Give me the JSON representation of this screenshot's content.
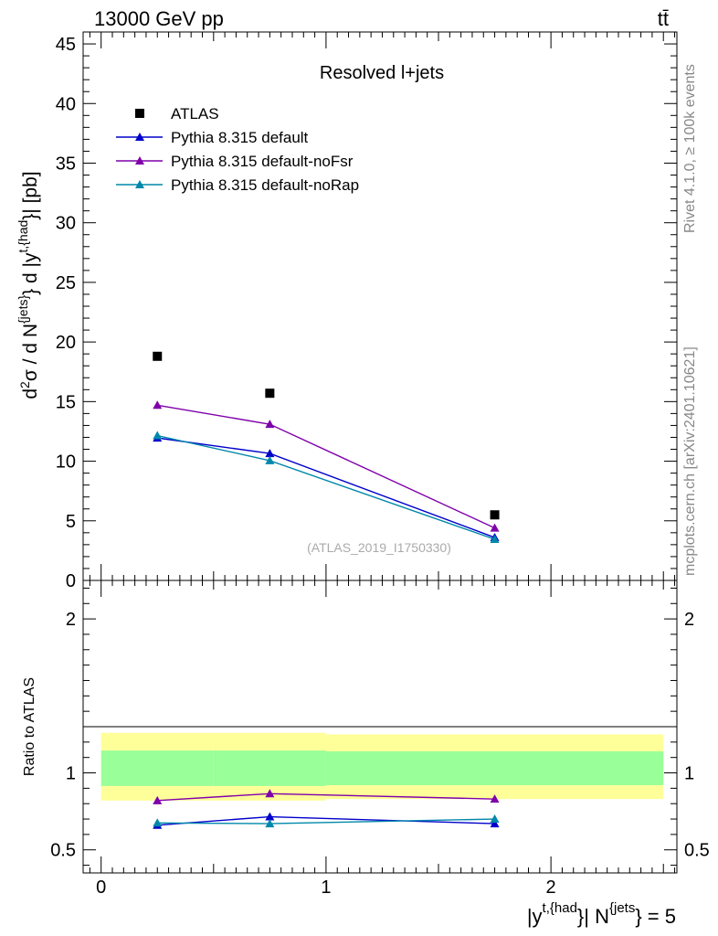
{
  "header": {
    "energy_label": "13000 GeV pp",
    "process_label": "tt̄",
    "side_label_top": "Rivet 4.1.0, ≥ 100k events",
    "side_label_bottom": "mcplots.cern.ch [arXiv:2401.10621]"
  },
  "chart_data": {
    "type": "line",
    "title": "Resolved l+jets",
    "watermark": "(ATLAS_2019_I1750330)",
    "main_panel": {
      "ylabel": "d²σ / d N^{jets} d |y^{t,{had}}| [pb]",
      "ylim": [
        0,
        46
      ],
      "yticks": [
        "0",
        "5",
        "10",
        "15",
        "20",
        "25",
        "30",
        "35",
        "40",
        "45"
      ]
    },
    "ratio_panel": {
      "ylabel": "Ratio to ATLAS",
      "ylim": [
        0.35,
        2.25
      ],
      "yticks": [
        "0.5",
        "1",
        "2"
      ]
    },
    "x_axis": {
      "xlabel": "|y^{t,{had}}| N^{jets} = 5",
      "xlim": [
        -0.08,
        2.56
      ],
      "xticks": [
        "0",
        "1",
        "2"
      ]
    },
    "bins": [
      [
        0,
        0.5
      ],
      [
        0.5,
        1
      ],
      [
        1,
        2.5
      ]
    ],
    "x": [
      0.25,
      0.75,
      1.75
    ],
    "data": {
      "name": "ATLAS",
      "values": [
        18.8,
        15.7,
        5.5
      ],
      "band_stat": [
        [
          0.915,
          1.145
        ],
        [
          0.915,
          1.145
        ],
        [
          0.92,
          1.14
        ]
      ],
      "band_total": [
        [
          0.82,
          1.26
        ],
        [
          0.82,
          1.26
        ],
        [
          0.83,
          1.25
        ]
      ]
    },
    "series": [
      {
        "name": "Pythia 8.315 default",
        "color": "#0000cc",
        "values": [
          11.95,
          10.65,
          3.6
        ],
        "errors": [
          0.3,
          0.3,
          0.15
        ],
        "ratio": [
          0.66,
          0.715,
          0.67
        ],
        "ratio_errors": [
          0.015,
          0.018,
          0.015
        ]
      },
      {
        "name": "Pythia 8.315 default-noFsr",
        "color": "#7f00aa",
        "values": [
          14.7,
          13.1,
          4.4
        ],
        "errors": [
          0.3,
          0.3,
          0.15
        ],
        "ratio": [
          0.82,
          0.865,
          0.83
        ],
        "ratio_errors": [
          0.015,
          0.018,
          0.015
        ]
      },
      {
        "name": "Pythia 8.315 default-noRap",
        "color": "#0088aa",
        "values": [
          12.15,
          10.05,
          3.45
        ],
        "errors": [
          0.3,
          0.3,
          0.15
        ],
        "ratio": [
          0.675,
          0.67,
          0.7
        ],
        "ratio_errors": [
          0.018,
          0.018,
          0.018
        ]
      }
    ]
  }
}
